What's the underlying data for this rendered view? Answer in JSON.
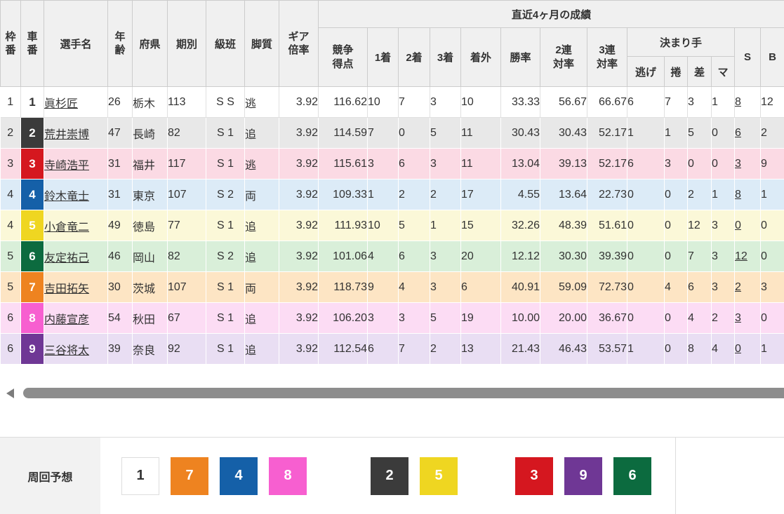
{
  "table": {
    "headers": {
      "waku": "枠\n番",
      "car": "車\n番",
      "name": "選手名",
      "age": "年\n齢",
      "pref": "府県",
      "term": "期別",
      "grade": "級班",
      "style": "脚質",
      "gear": "ギア\n倍率",
      "recent": "直近4ヶ月の成績",
      "points": "競争\n得点",
      "first": "1着",
      "second": "2着",
      "third": "3着",
      "out": "着外",
      "win_rate": "勝率",
      "ren2": "2連\n対率",
      "ren3": "3連\n対率",
      "kimarite": "決まり手",
      "nige": "逃げ",
      "makuri": "捲",
      "sashi": "差",
      "mark": "マ",
      "s": "S",
      "b": "B"
    },
    "rows": [
      {
        "waku": "1",
        "car": "1",
        "name": "眞杉匠",
        "age": "26",
        "pref": "栃木",
        "term": "113",
        "grade": "S S",
        "style": "逃",
        "gear": "3.92",
        "points": "116.62",
        "first": "10",
        "second": "7",
        "third": "3",
        "out": "10",
        "win_rate": "33.33",
        "ren2": "56.67",
        "ren3": "66.67",
        "nige": "6",
        "makuri": "7",
        "sashi": "3",
        "mark": "1",
        "s": "8",
        "b": "12",
        "bg": "#ffffff"
      },
      {
        "waku": "2",
        "car": "2",
        "name": "荒井崇博",
        "age": "47",
        "pref": "長崎",
        "term": "82",
        "grade": "S 1",
        "style": "追",
        "gear": "3.92",
        "points": "114.59",
        "first": "7",
        "second": "0",
        "third": "5",
        "out": "11",
        "win_rate": "30.43",
        "ren2": "30.43",
        "ren3": "52.17",
        "nige": "1",
        "makuri": "1",
        "sashi": "5",
        "mark": "0",
        "s": "6",
        "b": "2",
        "bg": "#e8e8e8"
      },
      {
        "waku": "3",
        "car": "3",
        "name": "寺崎浩平",
        "age": "31",
        "pref": "福井",
        "term": "117",
        "grade": "S 1",
        "style": "逃",
        "gear": "3.92",
        "points": "115.61",
        "first": "3",
        "second": "6",
        "third": "3",
        "out": "11",
        "win_rate": "13.04",
        "ren2": "39.13",
        "ren3": "52.17",
        "nige": "6",
        "makuri": "3",
        "sashi": "0",
        "mark": "0",
        "s": "3",
        "b": "9",
        "bg": "#fbdae4"
      },
      {
        "waku": "4",
        "car": "4",
        "name": "鈴木竜士",
        "age": "31",
        "pref": "東京",
        "term": "107",
        "grade": "S 2",
        "style": "両",
        "gear": "3.92",
        "points": "109.33",
        "first": "1",
        "second": "2",
        "third": "2",
        "out": "17",
        "win_rate": "4.55",
        "ren2": "13.64",
        "ren3": "22.73",
        "nige": "0",
        "makuri": "0",
        "sashi": "2",
        "mark": "1",
        "s": "8",
        "b": "1",
        "bg": "#dcebf7"
      },
      {
        "waku": "4",
        "car": "5",
        "name": "小倉竜二",
        "age": "49",
        "pref": "徳島",
        "term": "77",
        "grade": "S 1",
        "style": "追",
        "gear": "3.92",
        "points": "111.93",
        "first": "10",
        "second": "5",
        "third": "1",
        "out": "15",
        "win_rate": "32.26",
        "ren2": "48.39",
        "ren3": "51.61",
        "nige": "0",
        "makuri": "0",
        "sashi": "12",
        "mark": "3",
        "s": "0",
        "b": "0",
        "bg": "#fbf8d8"
      },
      {
        "waku": "5",
        "car": "6",
        "name": "友定祐己",
        "age": "46",
        "pref": "岡山",
        "term": "82",
        "grade": "S 2",
        "style": "追",
        "gear": "3.92",
        "points": "101.06",
        "first": "4",
        "second": "6",
        "third": "3",
        "out": "20",
        "win_rate": "12.12",
        "ren2": "30.30",
        "ren3": "39.39",
        "nige": "0",
        "makuri": "0",
        "sashi": "7",
        "mark": "3",
        "s": "12",
        "b": "0",
        "bg": "#d9efd9"
      },
      {
        "waku": "5",
        "car": "7",
        "name": "吉田拓矢",
        "age": "30",
        "pref": "茨城",
        "term": "107",
        "grade": "S 1",
        "style": "両",
        "gear": "3.92",
        "points": "118.73",
        "first": "9",
        "second": "4",
        "third": "3",
        "out": "6",
        "win_rate": "40.91",
        "ren2": "59.09",
        "ren3": "72.73",
        "nige": "0",
        "makuri": "4",
        "sashi": "6",
        "mark": "3",
        "s": "2",
        "b": "3",
        "bg": "#fde5c4"
      },
      {
        "waku": "6",
        "car": "8",
        "name": "内藤宣彦",
        "age": "54",
        "pref": "秋田",
        "term": "67",
        "grade": "S 1",
        "style": "追",
        "gear": "3.92",
        "points": "106.20",
        "first": "3",
        "second": "3",
        "third": "5",
        "out": "19",
        "win_rate": "10.00",
        "ren2": "20.00",
        "ren3": "36.67",
        "nige": "0",
        "makuri": "0",
        "sashi": "4",
        "mark": "2",
        "s": "3",
        "b": "0",
        "bg": "#fcdcf4"
      },
      {
        "waku": "6",
        "car": "9",
        "name": "三谷将太",
        "age": "39",
        "pref": "奈良",
        "term": "92",
        "grade": "S 1",
        "style": "追",
        "gear": "3.92",
        "points": "112.54",
        "first": "6",
        "second": "7",
        "third": "2",
        "out": "13",
        "win_rate": "21.43",
        "ren2": "46.43",
        "ren3": "53.57",
        "nige": "1",
        "makuri": "0",
        "sashi": "8",
        "mark": "4",
        "s": "0",
        "b": "1",
        "bg": "#e9def3"
      }
    ]
  },
  "car_colors": {
    "1": {
      "bg": "#ffffff",
      "text": "#333333"
    },
    "2": {
      "bg": "#3b3b3b",
      "text": "#ffffff"
    },
    "3": {
      "bg": "#d5171f",
      "text": "#ffffff"
    },
    "4": {
      "bg": "#1560a8",
      "text": "#ffffff"
    },
    "5": {
      "bg": "#efd621",
      "text": "#ffffff"
    },
    "6": {
      "bg": "#0c6b3f",
      "text": "#ffffff"
    },
    "7": {
      "bg": "#ee8320",
      "text": "#ffffff"
    },
    "8": {
      "bg": "#f75fd0",
      "text": "#ffffff"
    },
    "9": {
      "bg": "#6f3795",
      "text": "#ffffff"
    }
  },
  "lap_prediction": {
    "label": "周回予想",
    "groups": [
      [
        "1",
        "7",
        "4",
        "8"
      ],
      [
        "2",
        "5"
      ],
      [
        "3",
        "9",
        "6"
      ]
    ]
  }
}
